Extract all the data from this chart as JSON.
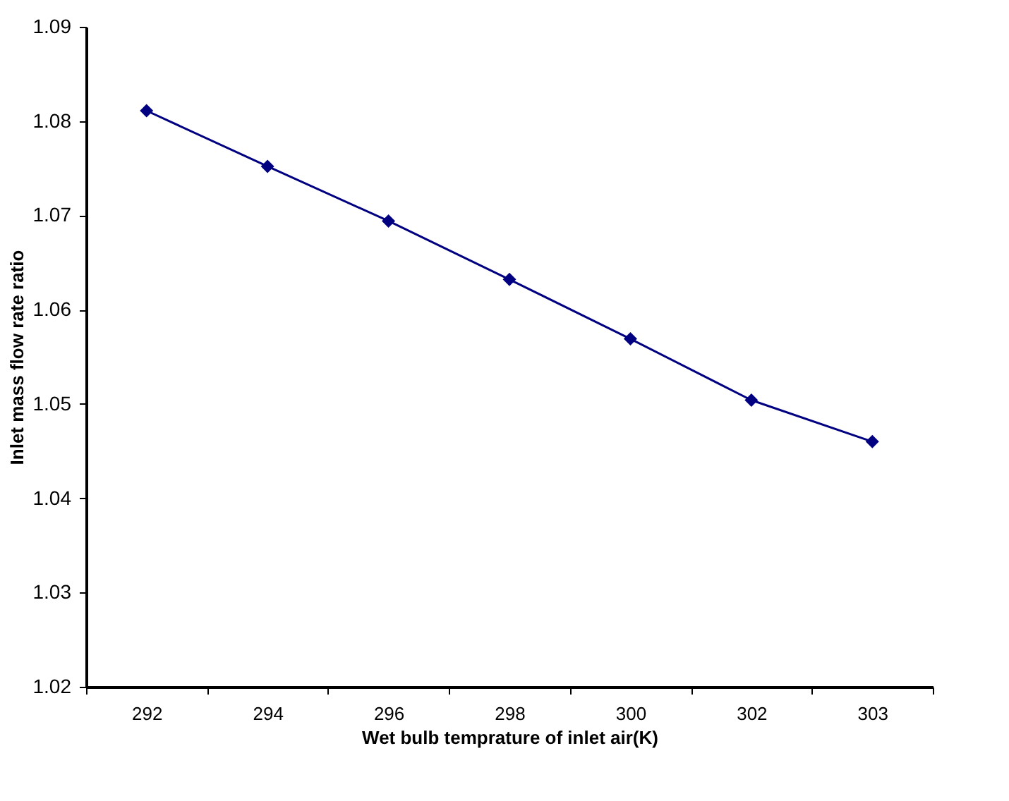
{
  "chart_data": {
    "type": "line",
    "xlabel": "Wet bulb temprature of inlet air(K)",
    "ylabel": "Inlet mass flow rate ratio",
    "categories": [
      "292",
      "294",
      "296",
      "298",
      "300",
      "302",
      "303"
    ],
    "series": [
      {
        "color": "#000080",
        "values": [
          1.0811,
          1.0752,
          1.0694,
          1.0632,
          1.0569,
          1.0504,
          1.046
        ]
      }
    ],
    "ylim": [
      1.02,
      1.09
    ],
    "yticks": [
      1.02,
      1.03,
      1.04,
      1.05,
      1.06,
      1.07,
      1.08,
      1.09
    ],
    "grid": false,
    "marker": "diamond",
    "line_style": "solid"
  }
}
